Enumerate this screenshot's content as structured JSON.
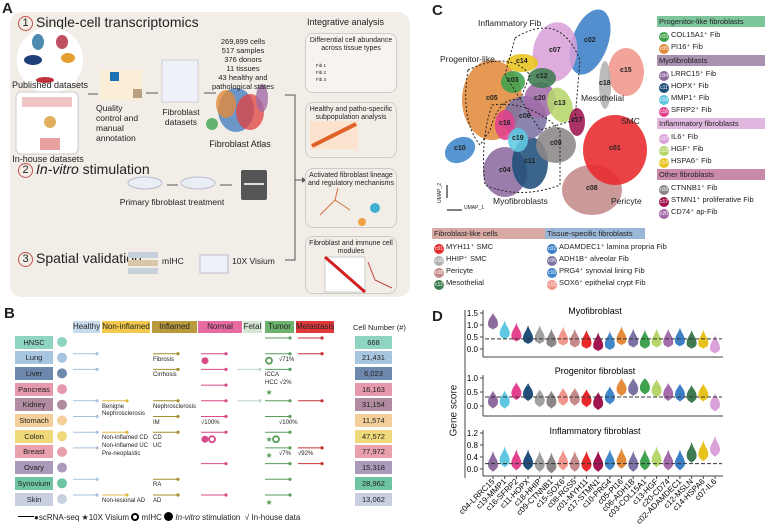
{
  "panel_a": {
    "label": "A",
    "step1": {
      "num": "1",
      "title": "Single-cell transcriptomics"
    },
    "published": "Published datasets",
    "inhouse": "In-house datasets",
    "qc": "Quality control and manual annotation",
    "fib_datasets": "Fibroblast datasets",
    "stats": [
      "269,899 cells",
      "517 samples",
      "376 donors",
      "11 tissues",
      "43 healthy and",
      "pathological states"
    ],
    "atlas": "Fibroblast Atlas",
    "step2": {
      "num": "2",
      "title_italic": "In-vitro",
      "title_rest": " stimulation"
    },
    "primary": "Primary fibroblast treatment",
    "step3": {
      "num": "3",
      "title": "Spatial validation"
    },
    "mihc": "mIHC",
    "visium": "10X Visium",
    "integrative": {
      "title": "Integrative analysis",
      "boxes": [
        "Differential cell abundance across tissue types",
        "Healthy and patho-specific subpopulation analysis",
        "Activated fibroblast lineage and regulatory mechanisms",
        "Fibroblast and immune cell modules"
      ],
      "fib_labels": [
        "Fib 1",
        "Fib 2",
        "Fib 3"
      ]
    }
  },
  "panel_b": {
    "label": "B",
    "columns": [
      {
        "key": "healthy",
        "label": "Healthy",
        "bg": "#c9dced",
        "line": "#a9c1d8"
      },
      {
        "key": "noninfl",
        "label": "Non-inflamed",
        "bg": "#f2c94c",
        "line": "#e0b840"
      },
      {
        "key": "infl",
        "label": "Inflamed",
        "bg": "#b99b3e",
        "line": "#a68e2e"
      },
      {
        "key": "normal",
        "label": "Normal",
        "bg": "#e76aa1",
        "line": "#d84a8a"
      },
      {
        "key": "fetal",
        "label": "Fetal",
        "bg": "#d5e6d5",
        "line": "#c0d6c8"
      },
      {
        "key": "tumor",
        "label": "Tumor",
        "bg": "#6db36d",
        "line": "#5a9e5a"
      },
      {
        "key": "meta",
        "label": "Metastasis",
        "bg": "#e0393b",
        "line": "#c83030"
      }
    ],
    "cell_number_header": "Cell Number (#)",
    "rows": [
      {
        "tissue": "HNSC",
        "color": "#8fd4c1",
        "cells": "668",
        "lines": [
          "tumor",
          "meta"
        ],
        "ann": []
      },
      {
        "tissue": "Lung",
        "color": "#a8c5df",
        "cells": "21,431",
        "lines": [
          "healthy",
          "infl",
          "normal",
          "tumor",
          "meta"
        ],
        "ann": [
          {
            "col": "infl",
            "text": "Fibrosis"
          },
          {
            "col": "tumor",
            "text": "√71%"
          }
        ],
        "marks": [
          {
            "col": "normal",
            "type": "in-vitro"
          },
          {
            "col": "tumor",
            "type": "mihc"
          }
        ]
      },
      {
        "tissue": "Liver",
        "color": "#6e87ac",
        "cells": "6,023",
        "lines": [
          "healthy",
          "infl",
          "normal",
          "fetal",
          "tumor"
        ],
        "ann": [
          {
            "col": "infl",
            "text": "Cirrhosis"
          },
          {
            "col": "tumor",
            "text": "iCCA"
          },
          {
            "col": "tumor",
            "text": "HCC √2%"
          }
        ]
      },
      {
        "tissue": "Pancreas",
        "color": "#e598ae",
        "cells": "16,163",
        "lines": [
          "normal"
        ],
        "ann": [],
        "marks": [
          {
            "col": "tumor",
            "type": "visium"
          }
        ]
      },
      {
        "tissue": "Kidney",
        "color": "#b18b9f",
        "cells": "31,154",
        "lines": [
          "healthy",
          "noninfl",
          "infl",
          "normal",
          "fetal",
          "tumor",
          "meta"
        ],
        "ann": [
          {
            "col": "noninfl",
            "text": "Benigne Nephrosclerosis"
          },
          {
            "col": "infl",
            "text": "Nephrosclerosis"
          }
        ]
      },
      {
        "tissue": "Stomach",
        "color": "#f4cf9b",
        "cells": "11,574",
        "lines": [
          "healthy",
          "infl",
          "normal",
          "tumor"
        ],
        "ann": [
          {
            "col": "infl",
            "text": "IM"
          },
          {
            "col": "normal",
            "text": "√100%"
          },
          {
            "col": "tumor",
            "text": "√100%"
          }
        ]
      },
      {
        "tissue": "Colon",
        "color": "#f0d97b",
        "cells": "47,572",
        "lines": [
          "healthy",
          "noninfl",
          "infl",
          "normal",
          "tumor"
        ],
        "ann": [
          {
            "col": "noninfl",
            "text": "Non-inflamed CD"
          },
          {
            "col": "noninfl",
            "text": "Non-inflamed UC"
          },
          {
            "col": "infl",
            "text": "CD"
          },
          {
            "col": "infl",
            "text": "UC"
          }
        ],
        "marks": [
          {
            "col": "normal",
            "type": "in-vitro"
          },
          {
            "col": "normal",
            "type": "mihc"
          },
          {
            "col": "tumor",
            "type": "visium"
          },
          {
            "col": "tumor",
            "type": "mihc"
          }
        ]
      },
      {
        "tissue": "Breast",
        "color": "#e8a1ad",
        "cells": "77,972",
        "lines": [
          "healthy",
          "tumor",
          "meta"
        ],
        "ann": [
          {
            "col": "noninfl",
            "text": "Pre-neoplastic"
          },
          {
            "col": "tumor",
            "text": "√7%"
          },
          {
            "col": "meta",
            "text": "√92%"
          }
        ],
        "marks": [
          {
            "col": "tumor",
            "type": "visium"
          }
        ]
      },
      {
        "tissue": "Ovary",
        "color": "#a99bb9",
        "cells": "15,318",
        "lines": [
          "normal",
          "tumor",
          "meta"
        ],
        "ann": []
      },
      {
        "tissue": "Synovium",
        "color": "#6ec4a3",
        "cells": "28,962",
        "lines": [
          "healthy",
          "infl",
          "tumor"
        ],
        "ann": [
          {
            "col": "infl",
            "text": "RA"
          }
        ]
      },
      {
        "tissue": "Skin",
        "color": "#c7cfe1",
        "cells": "13,062",
        "lines": [
          "healthy",
          "noninfl",
          "infl",
          "normal",
          "tumor"
        ],
        "ann": [
          {
            "col": "noninfl",
            "text": "Non-lesional AD"
          },
          {
            "col": "infl",
            "text": "AD"
          }
        ],
        "marks": [
          {
            "col": "tumor",
            "type": "visium"
          }
        ]
      }
    ],
    "legend": {
      "scrna": "scRNA-seq",
      "visium": "10X Visium",
      "mihc": "mIHC",
      "invitro": "In-vitro",
      "invitro_rest": " stimulation",
      "inhouse": "√ In-house data"
    }
  },
  "panel_c": {
    "label": "C",
    "annotations": {
      "inflammatory": "Inflammatory Fib",
      "progenitor": "Progenitor-like",
      "mesothelial": "Mesothelial",
      "smc": "SMC",
      "pericyte": "Pericyte",
      "myo": "Myofibroblasts",
      "umap1": "UMAP_1",
      "umap2": "UMAP_2"
    },
    "clusters": {
      "c01": "#e8292b",
      "c02": "#3b7fc7",
      "c03": "#3fa24f",
      "c04": "#8d6b9f",
      "c05": "#e38b3b",
      "c06": "#7c72a3",
      "c07": "#d9a2d8",
      "c08": "#c58b8b",
      "c09": "#8c8686",
      "c10": "#3f87c9",
      "c11": "#1f4e7a",
      "c12": "#3e7b50",
      "c13": "#b6d66c",
      "c14": "#e8c31e",
      "c15": "#f1968c",
      "c16": "#e1418d",
      "c17": "#a1144f",
      "c18": "#b2b2b2",
      "c19": "#5fc8e0",
      "c20": "#a36ba9"
    },
    "groups": [
      {
        "title": "Progenitor-like fibroblasts",
        "color": "#7dc59b",
        "items": [
          {
            "id": "c03",
            "label": "COL15A1⁺ Fib"
          },
          {
            "id": "c05",
            "label": "PI16⁺ Fib"
          }
        ]
      },
      {
        "title": "Myofibroblasts",
        "color": "#a991b1",
        "items": [
          {
            "id": "c04",
            "label": "LRRC15⁺ Fib"
          },
          {
            "id": "c11",
            "label": "HOPX⁺ Fib"
          },
          {
            "id": "c19",
            "label": "MMP1⁺ Fib"
          },
          {
            "id": "c16",
            "label": "SFRP2⁺ Fib"
          }
        ]
      },
      {
        "title": "Inflammatory fibroblasts",
        "color": "#dfb7df",
        "items": [
          {
            "id": "c07",
            "label": "IL6⁺ Fib"
          },
          {
            "id": "c13",
            "label": "HGF⁺ Fib"
          },
          {
            "id": "c14",
            "label": "HSPA6⁺ Fib"
          }
        ]
      },
      {
        "title": "Other fibroblasts",
        "color": "#c98aa9",
        "items": [
          {
            "id": "c09",
            "label": "CTNNB1⁺ Fib"
          },
          {
            "id": "c17",
            "label": "STMN1⁺ proliferative Fib"
          },
          {
            "id": "c20",
            "label": "CD74⁺ ap-Fib"
          }
        ]
      },
      {
        "title": "Fibroblast-like cells",
        "color": "#d9aaa4",
        "items": [
          {
            "id": "c01",
            "label": "MYH11⁺ SMC"
          },
          {
            "id": "c18",
            "label": "HHIP⁺ SMC"
          },
          {
            "id": "c08",
            "label": "Pericyte"
          },
          {
            "id": "c12",
            "label": "Mesothelial"
          }
        ]
      },
      {
        "title": "Tissue-specific fibroblasts",
        "color": "#9bb7d7",
        "items": [
          {
            "id": "c02",
            "label": "ADAMDEC1⁺ lamina propria Fib"
          },
          {
            "id": "c06",
            "label": "ADH1B⁺ alveolar Fib"
          },
          {
            "id": "c10",
            "label": "PRG4⁺ synovial lining Fib"
          },
          {
            "id": "c15",
            "label": "SOX6⁺ epithelial crypt Fib"
          }
        ]
      }
    ]
  },
  "chart_data": {
    "type": "violin",
    "label": "D",
    "ylabel": "Gene score",
    "categories": [
      "c04-LRRC15",
      "c19-MMP1",
      "c16-SFRP2",
      "c11-HOPX",
      "c18-HHIP",
      "c09-CTNNB1",
      "c15-SOX6",
      "c08-RGS5",
      "c01-MYH11",
      "c17-STMN1",
      "c10-PRG4",
      "c05-PI16",
      "c06-ADH1B",
      "c03-COL15A1",
      "c13-HGF",
      "c20-CD74",
      "c02-ADAMDEC1",
      "c12-MSLN",
      "c14-HSPA6",
      "c07-IL6"
    ],
    "colors": [
      "#8d6b9f",
      "#5fc8e0",
      "#e1418d",
      "#1f4e7a",
      "#a0a0a0",
      "#8c8686",
      "#f1968c",
      "#c58b8b",
      "#e8292b",
      "#a1144f",
      "#3f87c9",
      "#e38b3b",
      "#7c72a3",
      "#3fa24f",
      "#b6d66c",
      "#a36ba9",
      "#3b7fc7",
      "#3e7b50",
      "#e8c31e",
      "#d9a2d8"
    ],
    "panels": [
      {
        "title": "Myofibroblast",
        "yticks": [
          "1.5",
          "1.0",
          "0.5",
          "0.0"
        ],
        "ylim": [
          0,
          1.5
        ],
        "threshold": 0.42,
        "medians": [
          1.05,
          0.65,
          0.55,
          0.45,
          0.45,
          0.3,
          0.38,
          0.3,
          0.25,
          0.15,
          0.2,
          0.4,
          0.3,
          0.25,
          0.3,
          0.3,
          0.35,
          0.25,
          0.25,
          0.05
        ]
      },
      {
        "title": "Progenitor fibroblast",
        "yticks": [
          "1.0",
          "0.5",
          "0.0"
        ],
        "ylim": [
          0,
          1.0
        ],
        "threshold": 0.32,
        "medians": [
          0.15,
          0.15,
          0.45,
          0.42,
          0.2,
          0.15,
          0.25,
          0.25,
          0.2,
          0.1,
          0.3,
          0.6,
          0.6,
          0.65,
          0.55,
          0.42,
          0.4,
          0.35,
          0.4,
          0.05
        ]
      },
      {
        "title": "Inflammatory fibroblast",
        "yticks": [
          "1.2",
          "0.8",
          "0.4",
          "0.0"
        ],
        "ylim": [
          0,
          1.2
        ],
        "threshold": 0.18,
        "medians": [
          0.15,
          0.3,
          0.2,
          0.2,
          0.15,
          0.1,
          0.2,
          0.15,
          0.15,
          0.15,
          0.2,
          0.25,
          0.15,
          0.2,
          0.3,
          0.2,
          0.2,
          0.45,
          0.5,
          0.65
        ]
      }
    ]
  }
}
